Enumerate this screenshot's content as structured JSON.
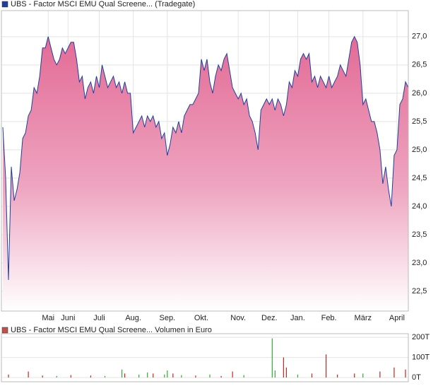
{
  "chart_data": [
    {
      "type": "line",
      "series": [
        {
          "name": "UBS - Factor MSCI EMU Qual Screene... (Tradegate)",
          "color": "#1f3f9f",
          "values": [
            25.4,
            24.5,
            22.7,
            24.7,
            24.1,
            24.3,
            24.6,
            25.2,
            25.3,
            25.6,
            25.7,
            26.1,
            26.0,
            26.3,
            26.8,
            26.8,
            27.0,
            26.8,
            26.6,
            26.5,
            26.6,
            26.8,
            26.7,
            26.8,
            26.9,
            26.9,
            26.6,
            26.2,
            26.3,
            25.9,
            26.1,
            26.2,
            26.0,
            26.3,
            26.1,
            26.5,
            26.3,
            26.1,
            26.2,
            26.3,
            26.1,
            26.2,
            26.0,
            26.2,
            26.0,
            26.0,
            25.3,
            25.4,
            25.5,
            25.6,
            25.4,
            25.6,
            25.5,
            25.6,
            25.4,
            25.5,
            25.2,
            25.3,
            24.9,
            25.1,
            25.4,
            25.3,
            25.5,
            25.3,
            25.6,
            25.7,
            25.8,
            25.8,
            25.9,
            26.0,
            26.6,
            26.4,
            26.6,
            26.2,
            26.0,
            26.3,
            26.5,
            26.4,
            26.6,
            26.7,
            26.4,
            26.1,
            26.0,
            25.9,
            26.0,
            25.8,
            25.9,
            25.6,
            25.5,
            25.3,
            25.0,
            25.7,
            25.8,
            25.9,
            25.8,
            25.9,
            25.7,
            25.9,
            25.8,
            25.6,
            25.8,
            26.2,
            26.1,
            26.4,
            26.3,
            26.6,
            26.7,
            26.6,
            26.7,
            26.2,
            26.3,
            26.1,
            26.3,
            26.2,
            26.1,
            26.3,
            26.1,
            26.2,
            26.3,
            26.5,
            26.4,
            26.3,
            26.6,
            26.9,
            27.0,
            26.9,
            26.5,
            25.8,
            25.9,
            25.7,
            25.5,
            25.5,
            25.3,
            25.0,
            24.4,
            24.7,
            24.3,
            24.0,
            24.9,
            25.0,
            25.8,
            25.9,
            26.2,
            26.1
          ]
        }
      ],
      "xlim": [
        0,
        143
      ],
      "xticks": [
        {
          "value": 16,
          "label": "Mai"
        },
        {
          "value": 23,
          "label": "Juni"
        },
        {
          "value": 34,
          "label": "Juli"
        },
        {
          "value": 46,
          "label": "Aug."
        },
        {
          "value": 58,
          "label": "Sep."
        },
        {
          "value": 70,
          "label": "Okt."
        },
        {
          "value": 83,
          "label": "Nov."
        },
        {
          "value": 94,
          "label": "Dez."
        },
        {
          "value": 104,
          "label": "Jan."
        },
        {
          "value": 115,
          "label": "Feb."
        },
        {
          "value": 127,
          "label": "März"
        },
        {
          "value": 139,
          "label": "April"
        }
      ],
      "ylim": [
        22.15,
        27.46
      ],
      "yticks": [
        {
          "value": 22.5,
          "label": "22,5"
        },
        {
          "value": 23,
          "label": "23,0"
        },
        {
          "value": 23.5,
          "label": "23,5"
        },
        {
          "value": 24,
          "label": "24,0"
        },
        {
          "value": 24.5,
          "label": "24,5"
        },
        {
          "value": 25,
          "label": "25,0"
        },
        {
          "value": 25.5,
          "label": "25,5"
        },
        {
          "value": 26,
          "label": "26,0"
        },
        {
          "value": 26.5,
          "label": "26,5"
        },
        {
          "value": 27,
          "label": "27,0"
        }
      ],
      "grid": true
    },
    {
      "type": "bar",
      "series": [
        {
          "name": "UBS - Factor MSCI EMU Qual Screene... Volumen in Euro",
          "color": "#c0504d",
          "x": [
            2,
            9,
            14,
            19,
            24,
            31,
            36,
            42,
            43,
            48,
            51,
            53,
            57,
            58,
            60,
            63,
            68,
            73,
            77,
            81,
            85,
            95,
            96,
            99,
            100,
            104,
            109,
            114,
            118,
            124,
            127,
            133,
            138,
            142
          ],
          "values": [
            15,
            30,
            10,
            8,
            12,
            10,
            8,
            40,
            20,
            15,
            25,
            20,
            15,
            35,
            20,
            12,
            10,
            15,
            8,
            30,
            12,
            195,
            35,
            100,
            50,
            15,
            20,
            115,
            15,
            20,
            20,
            30,
            50,
            40
          ],
          "colors": [
            "#cc2222",
            "#cc2222",
            "#cc2222",
            "#33aa33",
            "#cc2222",
            "#cc2222",
            "#33aa33",
            "#33aa33",
            "#cc2222",
            "#33aa33",
            "#33aa33",
            "#cc2222",
            "#33aa33",
            "#33aa33",
            "#cc2222",
            "#33aa33",
            "#cc2222",
            "#33aa33",
            "#cc2222",
            "#cc2222",
            "#33aa33",
            "#33aa33",
            "#33aa33",
            "#cc2222",
            "#cc2222",
            "#33aa33",
            "#cc2222",
            "#cc2222",
            "#cc2222",
            "#cc2222",
            "#33aa33",
            "#cc2222",
            "#cc2222",
            "#cc2222"
          ]
        }
      ],
      "xlim": [
        0,
        143
      ],
      "ylim": [
        -21,
        218
      ],
      "yticks": [
        {
          "value": 0,
          "label": "0T"
        },
        {
          "value": 100,
          "label": "100T"
        },
        {
          "value": 200,
          "label": "200T"
        }
      ],
      "grid": true
    }
  ]
}
